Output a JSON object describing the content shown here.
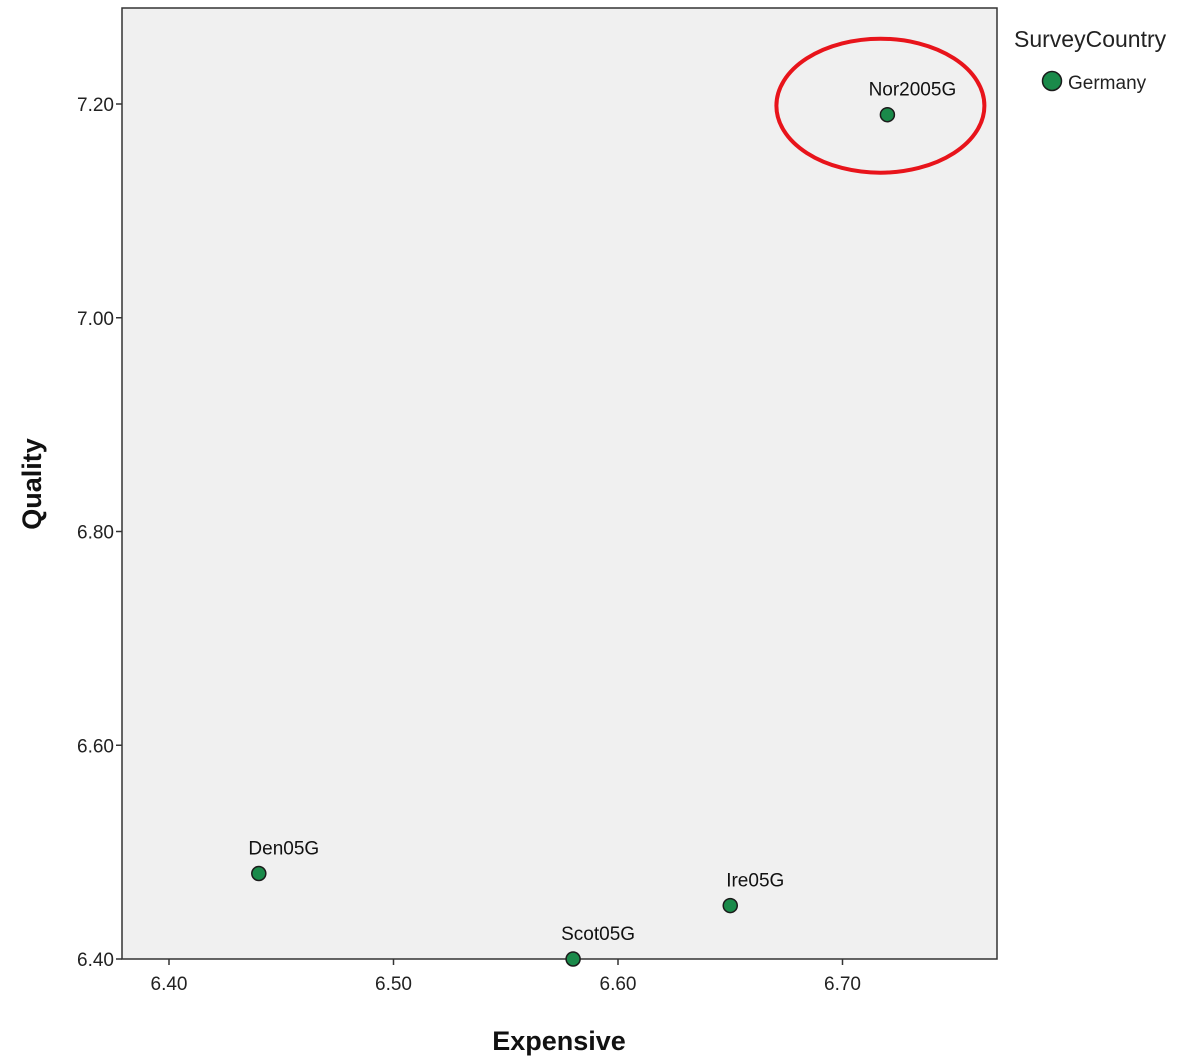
{
  "chart_data": {
    "type": "scatter",
    "title": "",
    "xlabel": "Expensive",
    "ylabel": "Quality",
    "xlim": [
      6.38,
      6.765
    ],
    "ylim": [
      6.4,
      7.28
    ],
    "x_ticks": [
      6.4,
      6.5,
      6.6,
      6.7
    ],
    "x_tick_labels": [
      "6.40",
      "6.50",
      "6.60",
      "6.70"
    ],
    "y_ticks": [
      6.4,
      6.6,
      6.8,
      7.0,
      7.2
    ],
    "y_tick_labels": [
      "6.40",
      "6.60",
      "6.80",
      "7.00",
      "7.20"
    ],
    "grid": false,
    "legend": {
      "title": "SurveyCountry",
      "placement": "top-right-outside",
      "entries": [
        {
          "label": "Germany",
          "color": "#1a8a4a"
        }
      ]
    },
    "series": [
      {
        "name": "Germany",
        "color": "#1a8a4a",
        "points": [
          {
            "label": "Nor2005G",
            "x": 6.72,
            "y": 7.19
          },
          {
            "label": "Den05G",
            "x": 6.44,
            "y": 6.48
          },
          {
            "label": "Ire05G",
            "x": 6.65,
            "y": 6.45
          },
          {
            "label": "Scot05G",
            "x": 6.58,
            "y": 6.4
          }
        ]
      }
    ],
    "annotations": [
      {
        "type": "ellipse",
        "around_point": "Nor2005G",
        "color": "#e8141b"
      }
    ],
    "plot_background": "#f0f0f0"
  }
}
